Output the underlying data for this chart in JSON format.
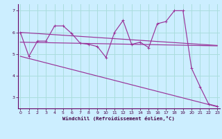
{
  "x_all": [
    0,
    1,
    2,
    3,
    4,
    5,
    6,
    7,
    8,
    9,
    10,
    11,
    12,
    13,
    14,
    15,
    16,
    17,
    18,
    19,
    20,
    21,
    22,
    23
  ],
  "zigzag_y": [
    6.0,
    4.9,
    5.6,
    5.6,
    6.3,
    6.3,
    5.95,
    5.5,
    5.45,
    5.35,
    4.85,
    6.0,
    6.55,
    5.45,
    5.55,
    5.3,
    6.4,
    6.5,
    7.0,
    7.0,
    4.35,
    3.5,
    2.7,
    2.6
  ],
  "trend1_y": [
    6.0,
    5.4
  ],
  "trend2_y": [
    5.55,
    5.38
  ],
  "trend3_y": [
    4.9,
    2.58
  ],
  "trend_x": [
    0,
    23
  ],
  "color": "#993399",
  "bg_color": "#cceeff",
  "grid_color": "#aadddd",
  "xlabel": "Windchill (Refroidissement éolien,°C)",
  "ylim": [
    2.5,
    7.3
  ],
  "xlim": [
    -0.3,
    23.3
  ],
  "xticks": [
    0,
    1,
    2,
    3,
    4,
    5,
    6,
    7,
    8,
    9,
    10,
    11,
    12,
    13,
    14,
    15,
    16,
    17,
    18,
    19,
    20,
    21,
    22,
    23
  ],
  "yticks": [
    3,
    4,
    5,
    6,
    7
  ]
}
